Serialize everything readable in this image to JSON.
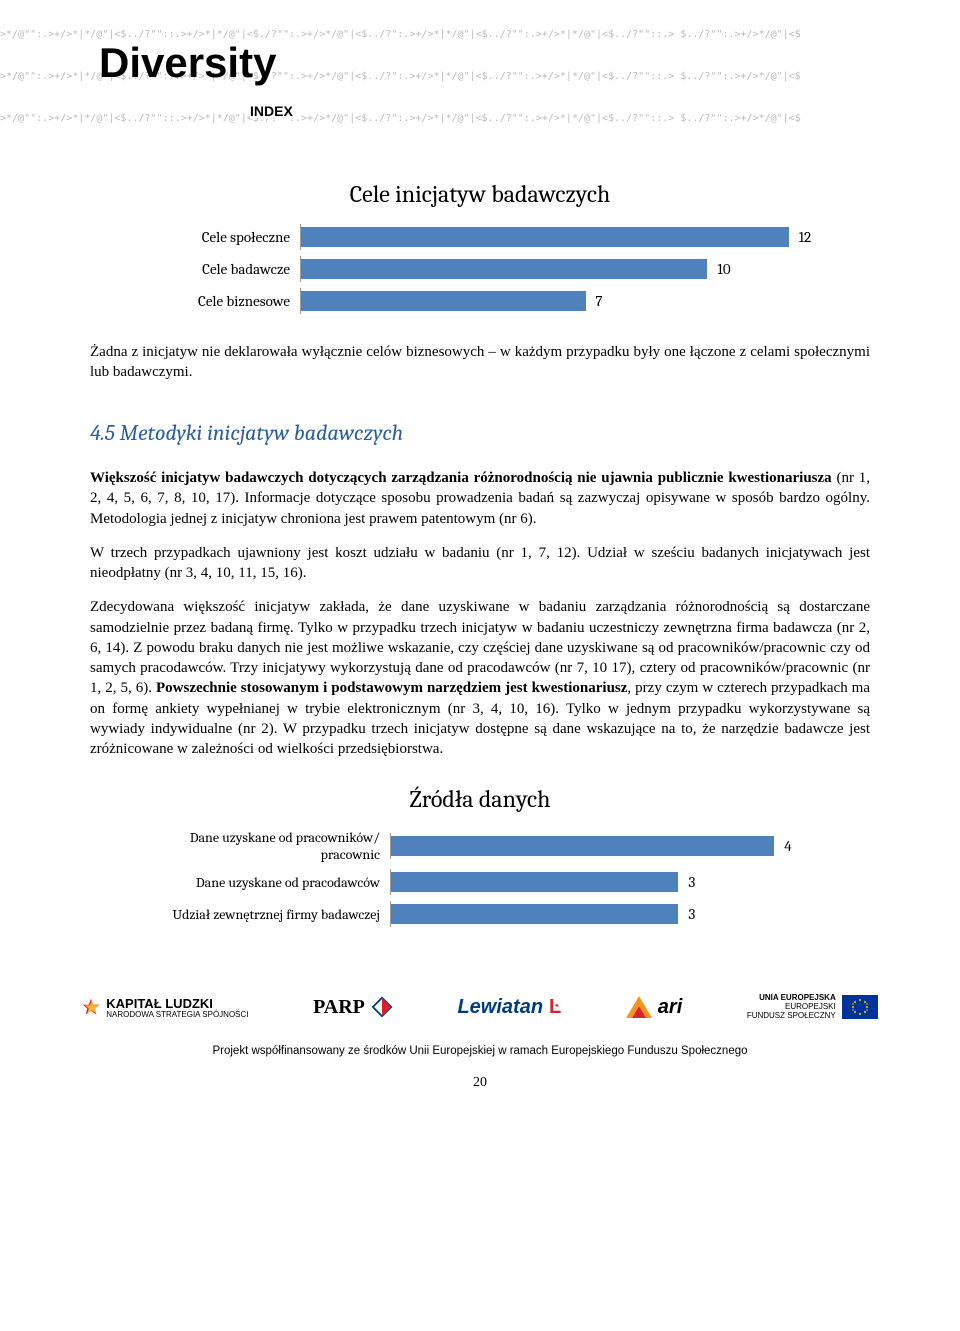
{
  "header": {
    "pattern_line": ">*/@\"\":.>+/>*|*/@\"|<$../?\"\"::.>+/>*|*/@\"|<$./?\"\":.>+/>*/@\"|<$../?\":.>+/>*|*/@\"|<$../?\"\":.>+/>*|*/@\"|<$../?\"\"::.>  $../?\"\":.>+/>*/@\"|<$",
    "logo_main": "Diversity",
    "logo_sub": "INDEX"
  },
  "chart1": {
    "title": "Cele inicjatyw badawczych",
    "bar_color": "#4f81bd",
    "max_value": 14,
    "rows": [
      {
        "label": "Cele społeczne",
        "value": 12
      },
      {
        "label": "Cele badawcze",
        "value": 10
      },
      {
        "label": "Cele biznesowe",
        "value": 7
      }
    ]
  },
  "text": {
    "p1": "Żadna z inicjatyw nie deklarowała wyłącznie celów biznesowych – w każdym przypadku były one łączone z celami społecznymi lub badawczymi.",
    "heading": "4.5 Metodyki inicjatyw badawczych",
    "p2_a": "Większość inicjatyw badawczych dotyczących zarządzania różnorodnością nie ujawnia publicznie kwestionariusza",
    "p2_b": " (nr 1, 2, 4, 5, 6, 7, 8, 10, 17). Informacje dotyczące sposobu prowadzenia badań są zazwyczaj opisywane w sposób bardzo ogólny. Metodologia jednej z inicjatyw chroniona jest prawem patentowym (nr 6).",
    "p3": "W trzech przypadkach ujawniony jest koszt udziału w badaniu (nr 1, 7, 12). Udział w sześciu badanych inicjatywach jest nieodpłatny (nr 3, 4, 10, 11, 15, 16).",
    "p4_a": "Zdecydowana większość inicjatyw zakłada, że dane uzyskiwane w badaniu zarządzania różnorodnością są dostarczane samodzielnie przez badaną firmę. Tylko w przypadku trzech inicjatyw w badaniu uczestniczy zewnętrzna firma badawcza (nr 2, 6, 14).  Z powodu braku danych nie jest możliwe wskazanie, czy częściej dane uzyskiwane są od pracowników/pracownic czy od samych pracodawców. Trzy inicjatywy wykorzystują dane od pracodawców (nr 7, 10 17), cztery od pracowników/pracownic (nr 1, 2, 5, 6). ",
    "p4_bold": "Powszechnie stosowanym i podstawowym narzędziem jest kwestionariusz",
    "p4_b": ", przy czym w czterech przypadkach ma on formę ankiety wypełnianej w trybie elektronicznym (nr 3, 4, 10, 16). Tylko w jednym przypadku wykorzystywane są wywiady indywidualne (nr 2). W przypadku trzech inicjatyw dostępne są dane wskazujące na to, że narzędzie badawcze jest zróżnicowane w zależności od wielkości przedsiębiorstwa."
  },
  "chart2": {
    "title": "Źródła danych",
    "bar_color": "#4f81bd",
    "max_value": 5,
    "rows": [
      {
        "label": "Dane uzyskane od pracowników/pracownic",
        "value": 4
      },
      {
        "label": "Dane uzyskane od pracodawców",
        "value": 3
      },
      {
        "label": "Udział zewnętrznej firmy badawczej",
        "value": 3
      }
    ]
  },
  "footer": {
    "logo1_main": "KAPITAŁ LUDZKI",
    "logo1_sub": "NARODOWA STRATEGIA SPÓJNOŚCI",
    "logo2": "PARP",
    "logo3": "Lewiatan",
    "logo4": "ari",
    "logo5_line1": "UNIA EUROPEJSKA",
    "logo5_line2": "EUROPEJSKI",
    "logo5_line3": "FUNDUSZ SPOŁECZNY",
    "note": "Projekt współfinansowany ze środków Unii Europejskiej w ramach Europejskiego Funduszu Społecznego",
    "page": "20"
  }
}
